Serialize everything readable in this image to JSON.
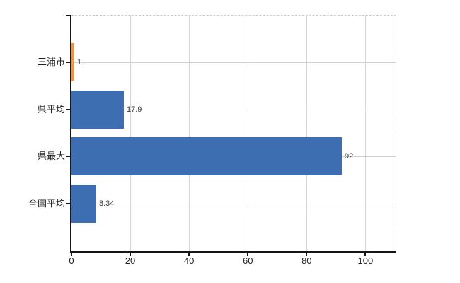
{
  "chart_data": {
    "type": "bar",
    "orientation": "horizontal",
    "title": "",
    "xlabel": "",
    "ylabel": "",
    "categories": [
      "三浦市",
      "県平均",
      "県最大",
      "全国平均"
    ],
    "values": [
      1,
      17.9,
      92,
      8.34
    ],
    "value_labels": [
      "1",
      "17.9",
      "92",
      "8.34"
    ],
    "bar_colors": [
      "#f0953c",
      "#3c6eb1",
      "#3c6eb1",
      "#3c6eb1"
    ],
    "x_ticks": [
      0,
      20,
      40,
      60,
      80,
      100
    ],
    "x_tick_labels": [
      "0",
      "20",
      "40",
      "60",
      "80",
      "100"
    ],
    "xlim": [
      0,
      110.5
    ],
    "grid": true,
    "legend": "none",
    "colors": {
      "highlight_bar": "#f0953c",
      "default_bar": "#3c6eb1",
      "h_gridline": "#cdd2cd",
      "v_gridline": "#d4d6d4",
      "dashed_border": "#c9cdc9",
      "axis": "#161616",
      "category_text": "#222222",
      "value_text": "#3a3a3a"
    }
  }
}
